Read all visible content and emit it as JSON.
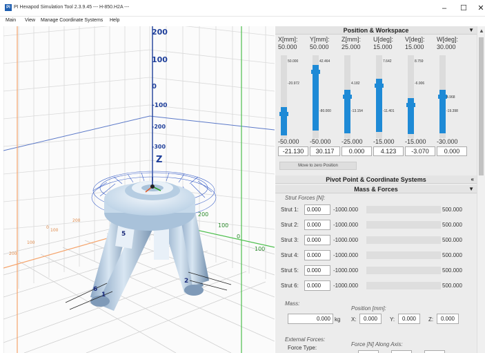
{
  "window": {
    "icon_text": "PI",
    "title": "PI Hexapod Simulation Tool 2.3.9.45 --- H-850.H2A ---",
    "minimize": "–",
    "maximize": "☐",
    "close": "✕"
  },
  "menu": [
    "Main",
    "View",
    "Manage Coordinate Systems",
    "Help"
  ],
  "viewport": {
    "z_ticks": [
      "200",
      "100",
      "0",
      "-100",
      "-200",
      "-300"
    ],
    "z_axis_label": "Z",
    "green_ticks": [
      "200",
      "100",
      "0",
      "100"
    ],
    "orange_ticks": [
      "200",
      "100",
      "0",
      "100",
      "200"
    ],
    "leg_labels": [
      "5",
      "6",
      "1",
      "2"
    ]
  },
  "position_workspace": {
    "title": "Position & Workspace",
    "axes": [
      {
        "label": "X[mm]:",
        "max": "50.000",
        "min": "-50.000",
        "value": "-21.130",
        "tick_top": "50.000",
        "tick_mid": "-20.972",
        "tick_bot": "",
        "level": 0.289
      },
      {
        "label": "Y[mm]:",
        "max": "50.000",
        "min": "-50.000",
        "value": "30.117",
        "tick_top": "42.464",
        "tick_mid": "",
        "tick_bot": "-80.000",
        "level": 0.801
      },
      {
        "label": "Z[mm]:",
        "max": "25.000",
        "min": "-25.000",
        "value": "0.000",
        "tick_top": "",
        "tick_mid": "4.182",
        "tick_bot": "-13.154",
        "level": 0.5
      },
      {
        "label": "U[deg]:",
        "max": "15.000",
        "min": "-15.000",
        "value": "4.123",
        "tick_top": "7.642",
        "tick_mid": "",
        "tick_bot": "-11.401",
        "level": 0.637
      },
      {
        "label": "V[deg]:",
        "max": "15.000",
        "min": "-15.000",
        "value": "-3.070",
        "tick_top": "8.759",
        "tick_mid": "-6.906",
        "tick_bot": "",
        "level": 0.398
      },
      {
        "label": "W[deg]:",
        "max": "30.000",
        "min": "-30.000",
        "value": "0.000",
        "tick_top": "",
        "tick_mid": "4.968",
        "tick_bot": "-19.398",
        "level": 0.5
      }
    ],
    "zero_button": "Move to zero Position"
  },
  "pivot_section": {
    "title": "Pivot Point & Coordinate Systems"
  },
  "mass_forces": {
    "title": "Mass & Forces",
    "strut_title": "Strut Forces [N]:",
    "struts": [
      {
        "label": "Strut 1:",
        "value": "0.000",
        "min": "-1000.000",
        "max": "500.000"
      },
      {
        "label": "Strut 2:",
        "value": "0.000",
        "min": "-1000.000",
        "max": "500.000"
      },
      {
        "label": "Strut 3:",
        "value": "0.000",
        "min": "-1000.000",
        "max": "500.000"
      },
      {
        "label": "Strut 4:",
        "value": "0.000",
        "min": "-1000.000",
        "max": "500.000"
      },
      {
        "label": "Strut 5:",
        "value": "0.000",
        "min": "-1000.000",
        "max": "500.000"
      },
      {
        "label": "Strut 6:",
        "value": "0.000",
        "min": "-1000.000",
        "max": "500.000"
      }
    ],
    "mass_label": "Mass:",
    "mass_value": "0.000",
    "mass_unit": "kg",
    "position_label": "Position [mm]:",
    "x_label": "X:",
    "x_value": "0.000",
    "y_label": "Y:",
    "y_value": "0.000",
    "z_label": "Z:",
    "z_value": "0.000",
    "external_label": "External Forces:",
    "force_type_label": "Force Type:",
    "force_axis_label": "Force [N] Along Axis:"
  },
  "colors": {
    "slider_blue": "#1e8ad6",
    "axis_blue": "#1f3f9a",
    "grid_orange": "#f5a36a",
    "grid_green": "#4cbf4c"
  }
}
